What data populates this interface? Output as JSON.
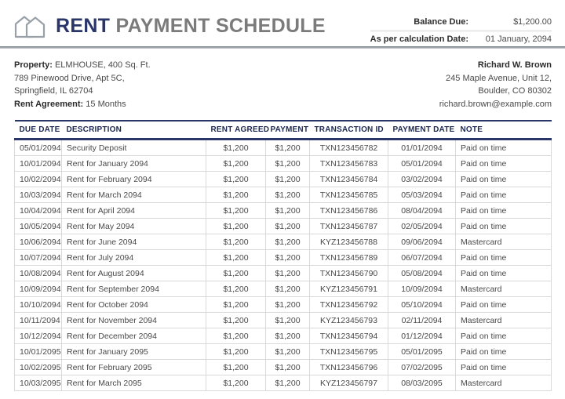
{
  "header": {
    "title_accent": "RENT",
    "title_rest": "PAYMENT SCHEDULE",
    "balance_due_label": "Balance Due:",
    "balance_due_value": "$1,200.00",
    "calc_date_label": "As per calculation Date:",
    "calc_date_value": "01 January, 2094"
  },
  "property": {
    "label": "Property:",
    "value": "ELMHOUSE, 400 Sq. Ft.",
    "address_line1": "789 Pinewood Drive, Apt 5C,",
    "address_line2": "Springfield, IL 62704",
    "agreement_label": "Rent Agreement:",
    "agreement_value": "15 Months"
  },
  "tenant": {
    "name": "Richard W. Brown",
    "address_line1": "245 Maple Avenue, Unit 12,",
    "address_line2": "Boulder, CO 80302",
    "email": "richard.brown@example.com"
  },
  "table": {
    "columns": [
      "DUE DATE",
      "DESCRIPTION",
      "RENT AGREED",
      "PAYMENT",
      "TRANSACTION ID",
      "PAYMENT DATE",
      "NOTE"
    ],
    "rows": [
      [
        "05/01/2094",
        "Security Deposit",
        "$1,200",
        "$1,200",
        "TXN123456782",
        "01/01/2094",
        "Paid on time"
      ],
      [
        "10/01/2094",
        "Rent for January 2094",
        "$1,200",
        "$1,200",
        "TXN123456783",
        "05/01/2094",
        "Paid on time"
      ],
      [
        "10/02/2094",
        "Rent for February 2094",
        "$1,200",
        "$1,200",
        "TXN123456784",
        "03/02/2094",
        "Paid on time"
      ],
      [
        "10/03/2094",
        "Rent for March 2094",
        "$1,200",
        "$1,200",
        "TXN123456785",
        "05/03/2094",
        "Paid on time"
      ],
      [
        "10/04/2094",
        "Rent for April 2094",
        "$1,200",
        "$1,200",
        "TXN123456786",
        "08/04/2094",
        "Paid on time"
      ],
      [
        "10/05/2094",
        "Rent for May 2094",
        "$1,200",
        "$1,200",
        "TXN123456787",
        "02/05/2094",
        "Paid on time"
      ],
      [
        "10/06/2094",
        "Rent for June 2094",
        "$1,200",
        "$1,200",
        "KYZ123456788",
        "09/06/2094",
        "Mastercard"
      ],
      [
        "10/07/2094",
        "Rent for July 2094",
        "$1,200",
        "$1,200",
        "TXN123456789",
        "06/07/2094",
        "Paid on time"
      ],
      [
        "10/08/2094",
        "Rent for August 2094",
        "$1,200",
        "$1,200",
        "TXN123456790",
        "05/08/2094",
        "Paid on time"
      ],
      [
        "10/09/2094",
        "Rent for September 2094",
        "$1,200",
        "$1,200",
        "KYZ123456791",
        "10/09/2094",
        "Mastercard"
      ],
      [
        "10/10/2094",
        "Rent for October 2094",
        "$1,200",
        "$1,200",
        "TXN123456792",
        "05/10/2094",
        "Paid on time"
      ],
      [
        "10/11/2094",
        "Rent for November 2094",
        "$1,200",
        "$1,200",
        "KYZ123456793",
        "02/11/2094",
        "Mastercard"
      ],
      [
        "10/12/2094",
        "Rent for December 2094",
        "$1,200",
        "$1,200",
        "TXN123456794",
        "01/12/2094",
        "Paid on time"
      ],
      [
        "10/01/2095",
        "Rent for January 2095",
        "$1,200",
        "$1,200",
        "TXN123456795",
        "05/01/2095",
        "Paid on time"
      ],
      [
        "10/02/2095",
        "Rent for February 2095",
        "$1,200",
        "$1,200",
        "TXN123456796",
        "07/02/2095",
        "Paid on time"
      ],
      [
        "10/03/2095",
        "Rent for March 2095",
        "$1,200",
        "$1,200",
        "KYZ123456797",
        "08/03/2095",
        "Mastercard"
      ]
    ]
  },
  "colors": {
    "accent_navy": "#2B3668",
    "title_gray": "#7B7B7B",
    "table_border_light": "#D9D9D9",
    "body_text": "#444444"
  },
  "icons": {
    "brand": "houses-icon"
  }
}
